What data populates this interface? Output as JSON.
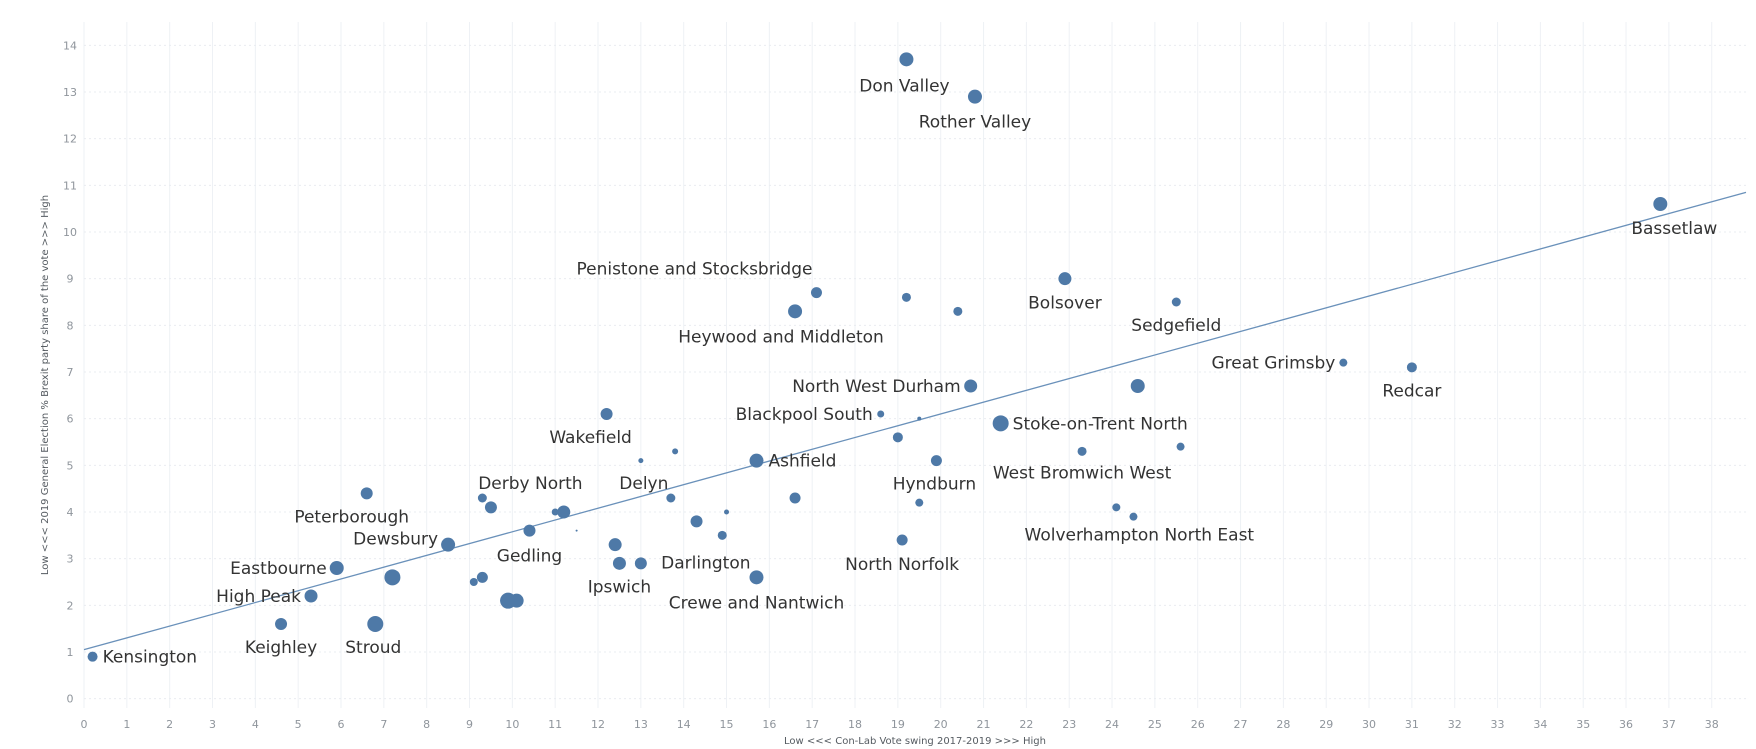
{
  "chart_data": {
    "type": "scatter",
    "title": "",
    "xlabel": "Low <<< Con-Lab Vote swing 2017-2019 >>> High",
    "ylabel": "Low <<< 2019 General Election % Brexit party share of the vote >>> High",
    "xlim": [
      0,
      38.8
    ],
    "ylim": [
      -0.2,
      14.5
    ],
    "x_ticks": [
      0,
      1,
      2,
      3,
      4,
      5,
      6,
      7,
      8,
      9,
      10,
      11,
      12,
      13,
      14,
      15,
      16,
      17,
      18,
      19,
      20,
      21,
      22,
      23,
      24,
      25,
      26,
      27,
      28,
      29,
      30,
      31,
      32,
      33,
      34,
      35,
      36,
      37,
      38
    ],
    "y_ticks": [
      0,
      1,
      2,
      3,
      4,
      5,
      6,
      7,
      8,
      9,
      10,
      11,
      12,
      13,
      14
    ],
    "grid": true,
    "legend": "none",
    "color": "#4e79a7",
    "trendline": {
      "x": [
        0,
        38.8
      ],
      "y": [
        1.05,
        10.85
      ]
    },
    "points": [
      {
        "label": "Don Valley",
        "x": 19.2,
        "y": 13.7,
        "size": 14
      },
      {
        "label": "Rother Valley",
        "x": 20.8,
        "y": 12.9,
        "size": 14
      },
      {
        "label": "Bassetlaw",
        "x": 36.8,
        "y": 10.6,
        "size": 14
      },
      {
        "label": "Penistone and Stocksbridge",
        "x": 17.1,
        "y": 8.7,
        "size": 11
      },
      {
        "label": "",
        "x": 19.2,
        "y": 8.6,
        "size": 9
      },
      {
        "label": "",
        "x": 20.4,
        "y": 8.3,
        "size": 9
      },
      {
        "label": "Heywood and Middleton",
        "x": 16.6,
        "y": 8.3,
        "size": 14
      },
      {
        "label": "Bolsover",
        "x": 22.9,
        "y": 9.0,
        "size": 13
      },
      {
        "label": "Sedgefield",
        "x": 25.5,
        "y": 8.5,
        "size": 9
      },
      {
        "label": "Great Grimsby",
        "x": 29.4,
        "y": 7.2,
        "size": 8
      },
      {
        "label": "Redcar",
        "x": 31.0,
        "y": 7.1,
        "size": 10
      },
      {
        "label": "North West Durham",
        "x": 20.7,
        "y": 6.7,
        "size": 13
      },
      {
        "label": "",
        "x": 24.6,
        "y": 6.7,
        "size": 14
      },
      {
        "label": "Blackpool South",
        "x": 18.6,
        "y": 6.1,
        "size": 7
      },
      {
        "label": "",
        "x": 19.5,
        "y": 6.0,
        "size": 4
      },
      {
        "label": "Stoke-on-Trent North",
        "x": 21.4,
        "y": 5.9,
        "size": 16
      },
      {
        "label": "Wakefield",
        "x": 12.2,
        "y": 6.1,
        "size": 12
      },
      {
        "label": "",
        "x": 19.0,
        "y": 5.6,
        "size": 10
      },
      {
        "label": "",
        "x": 13.0,
        "y": 5.1,
        "size": 5
      },
      {
        "label": "",
        "x": 13.8,
        "y": 5.3,
        "size": 6
      },
      {
        "label": "Ashfield",
        "x": 15.7,
        "y": 5.1,
        "size": 14
      },
      {
        "label": "Hyndburn",
        "x": 19.9,
        "y": 5.1,
        "size": 11
      },
      {
        "label": "West Bromwich West",
        "x": 23.3,
        "y": 5.3,
        "size": 9
      },
      {
        "label": "",
        "x": 25.6,
        "y": 5.4,
        "size": 8
      },
      {
        "label": "Delyn",
        "x": 13.7,
        "y": 4.3,
        "size": 9
      },
      {
        "label": "",
        "x": 15.0,
        "y": 4.0,
        "size": 5
      },
      {
        "label": "",
        "x": 16.6,
        "y": 4.3,
        "size": 11
      },
      {
        "label": "",
        "x": 19.5,
        "y": 4.2,
        "size": 8
      },
      {
        "label": "Wolverhampton North East",
        "x": 24.1,
        "y": 4.1,
        "size": 8
      },
      {
        "label": "",
        "x": 24.5,
        "y": 3.9,
        "size": 8
      },
      {
        "label": "Derby North",
        "x": 9.3,
        "y": 4.3,
        "size": 9
      },
      {
        "label": "",
        "x": 9.5,
        "y": 4.1,
        "size": 12
      },
      {
        "label": "",
        "x": 11.0,
        "y": 4.0,
        "size": 7
      },
      {
        "label": "",
        "x": 11.2,
        "y": 4.0,
        "size": 13
      },
      {
        "label": "",
        "x": 11.5,
        "y": 3.6,
        "size": 2
      },
      {
        "label": "Peterborough",
        "x": 6.6,
        "y": 4.4,
        "size": 12
      },
      {
        "label": "Gedling",
        "x": 10.4,
        "y": 3.6,
        "size": 12
      },
      {
        "label": "",
        "x": 14.3,
        "y": 3.8,
        "size": 12
      },
      {
        "label": "",
        "x": 14.9,
        "y": 3.5,
        "size": 9
      },
      {
        "label": "North Norfolk",
        "x": 19.1,
        "y": 3.4,
        "size": 11
      },
      {
        "label": "Dewsbury",
        "x": 8.5,
        "y": 3.3,
        "size": 14
      },
      {
        "label": "",
        "x": 12.4,
        "y": 3.3,
        "size": 13
      },
      {
        "label": "Darlington",
        "x": 13.0,
        "y": 2.9,
        "size": 12
      },
      {
        "label": "Ipswich",
        "x": 12.5,
        "y": 2.9,
        "size": 13
      },
      {
        "label": "Crewe and Nantwich",
        "x": 15.7,
        "y": 2.6,
        "size": 14
      },
      {
        "label": "Eastbourne",
        "x": 5.9,
        "y": 2.8,
        "size": 14
      },
      {
        "label": "",
        "x": 7.2,
        "y": 2.6,
        "size": 16
      },
      {
        "label": "",
        "x": 9.1,
        "y": 2.5,
        "size": 8
      },
      {
        "label": "",
        "x": 9.3,
        "y": 2.6,
        "size": 11
      },
      {
        "label": "",
        "x": 9.9,
        "y": 2.1,
        "size": 16
      },
      {
        "label": "",
        "x": 10.1,
        "y": 2.1,
        "size": 14
      },
      {
        "label": "High Peak",
        "x": 5.3,
        "y": 2.2,
        "size": 13
      },
      {
        "label": "Keighley",
        "x": 4.6,
        "y": 1.6,
        "size": 12
      },
      {
        "label": "Stroud",
        "x": 6.8,
        "y": 1.6,
        "size": 16
      },
      {
        "label": "Kensington",
        "x": 0.2,
        "y": 0.9,
        "size": 10
      }
    ]
  }
}
